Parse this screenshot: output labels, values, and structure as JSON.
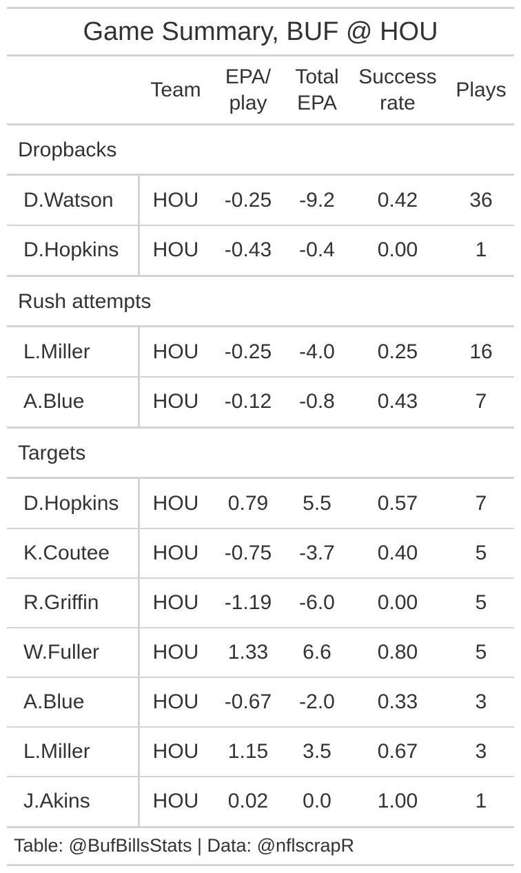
{
  "title": "Game Summary, BUF @ HOU",
  "columns": {
    "team": "Team",
    "epa_play_l1": "EPA/",
    "epa_play_l2": "play",
    "total_epa_l1": "Total",
    "total_epa_l2": "EPA",
    "success_l1": "Success",
    "success_l2": "rate",
    "plays": "Plays"
  },
  "groups": [
    {
      "label": "Dropbacks",
      "rows": [
        {
          "player": "D.Watson",
          "team": "HOU",
          "epa_play": "-0.25",
          "total_epa": "-9.2",
          "success_rate": "0.42",
          "plays": "36"
        },
        {
          "player": "D.Hopkins",
          "team": "HOU",
          "epa_play": "-0.43",
          "total_epa": "-0.4",
          "success_rate": "0.00",
          "plays": "1"
        }
      ]
    },
    {
      "label": "Rush attempts",
      "rows": [
        {
          "player": "L.Miller",
          "team": "HOU",
          "epa_play": "-0.25",
          "total_epa": "-4.0",
          "success_rate": "0.25",
          "plays": "16"
        },
        {
          "player": "A.Blue",
          "team": "HOU",
          "epa_play": "-0.12",
          "total_epa": "-0.8",
          "success_rate": "0.43",
          "plays": "7"
        }
      ]
    },
    {
      "label": "Targets",
      "rows": [
        {
          "player": "D.Hopkins",
          "team": "HOU",
          "epa_play": "0.79",
          "total_epa": "5.5",
          "success_rate": "0.57",
          "plays": "7"
        },
        {
          "player": "K.Coutee",
          "team": "HOU",
          "epa_play": "-0.75",
          "total_epa": "-3.7",
          "success_rate": "0.40",
          "plays": "5"
        },
        {
          "player": "R.Griffin",
          "team": "HOU",
          "epa_play": "-1.19",
          "total_epa": "-6.0",
          "success_rate": "0.00",
          "plays": "5"
        },
        {
          "player": "W.Fuller",
          "team": "HOU",
          "epa_play": "1.33",
          "total_epa": "6.6",
          "success_rate": "0.80",
          "plays": "5"
        },
        {
          "player": "A.Blue",
          "team": "HOU",
          "epa_play": "-0.67",
          "total_epa": "-2.0",
          "success_rate": "0.33",
          "plays": "3"
        },
        {
          "player": "L.Miller",
          "team": "HOU",
          "epa_play": "1.15",
          "total_epa": "3.5",
          "success_rate": "0.67",
          "plays": "3"
        },
        {
          "player": "J.Akins",
          "team": "HOU",
          "epa_play": "0.02",
          "total_epa": "0.0",
          "success_rate": "1.00",
          "plays": "1"
        }
      ]
    }
  ],
  "footer": "Table: @BufBillsStats | Data: @nflscrapR",
  "colors": {
    "rule": "#d3d3d3",
    "text": "#333333"
  },
  "chart_data": {
    "type": "table",
    "title": "Game Summary, BUF @ HOU",
    "columns": [
      "Team",
      "EPA/ play",
      "Total EPA",
      "Success rate",
      "Plays"
    ],
    "row_groups": [
      "Dropbacks",
      "Rush attempts",
      "Targets"
    ]
  }
}
